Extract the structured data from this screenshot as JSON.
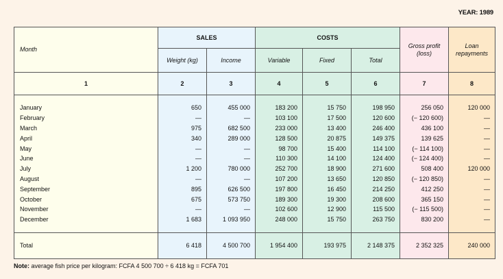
{
  "year_label": "YEAR: 1989",
  "headers": {
    "month": "Month",
    "sales": "SALES",
    "costs": "COSTS",
    "weight": "Weight (kg)",
    "income": "Income",
    "variable": "Variable",
    "fixed": "Fixed",
    "total": "Total",
    "gross_profit": "Gross profit (loss)",
    "loan": "Loan repayments"
  },
  "column_numbers": [
    "1",
    "2",
    "3",
    "4",
    "5",
    "6",
    "7",
    "8"
  ],
  "rows": [
    [
      "January",
      "650",
      "455 000",
      "183 200",
      "15 750",
      "198 950",
      "256 050",
      "120 000"
    ],
    [
      "February",
      "—",
      "—",
      "103 100",
      "17 500",
      "120 600",
      "(− 120 600)",
      "—"
    ],
    [
      "March",
      "975",
      "682 500",
      "233 000",
      "13 400",
      "246 400",
      "436 100",
      "—"
    ],
    [
      "April",
      "340",
      "289 000",
      "128 500",
      "20 875",
      "149 375",
      "139 625",
      "—"
    ],
    [
      "May",
      "—",
      "—",
      "98 700",
      "15 400",
      "114 100",
      "(− 114 100)",
      "—"
    ],
    [
      "June",
      "—",
      "—",
      "110 300",
      "14 100",
      "124 400",
      "(− 124 400)",
      "—"
    ],
    [
      "July",
      "1 200",
      "780 000",
      "252 700",
      "18 900",
      "271 600",
      "508 400",
      "120 000"
    ],
    [
      "August",
      "—",
      "—",
      "107 200",
      "13 650",
      "120 850",
      "(− 120 850)",
      "—"
    ],
    [
      "September",
      "895",
      "626 500",
      "197 800",
      "16 450",
      "214 250",
      "412 250",
      "—"
    ],
    [
      "October",
      "675",
      "573 750",
      "189 300",
      "19 300",
      "208 600",
      "365 150",
      "—"
    ],
    [
      "November",
      "—",
      "—",
      "102 600",
      "12 900",
      "115 500",
      "(− 115 500)",
      "—"
    ],
    [
      "December",
      "1 683",
      "1 093 950",
      "248 000",
      "15 750",
      "263 750",
      "830 200",
      "—"
    ]
  ],
  "total_row": [
    "Total",
    "6 418",
    "4 500 700",
    "1 954 400",
    "193 975",
    "2 148 375",
    "2 352 325",
    "240 000"
  ],
  "note": {
    "label": "Note:",
    "text": " average fish price per kilogram: FCFA 4 500 700 ÷ 6 418 kg = FCFA 701"
  },
  "colors": {
    "background": "#fdf3e8",
    "month_column": "#fefeec",
    "sales": "#e8f4fc",
    "costs": "#d8f0e4",
    "gross_profit": "#fde8ec",
    "loan": "#fde8c8"
  }
}
